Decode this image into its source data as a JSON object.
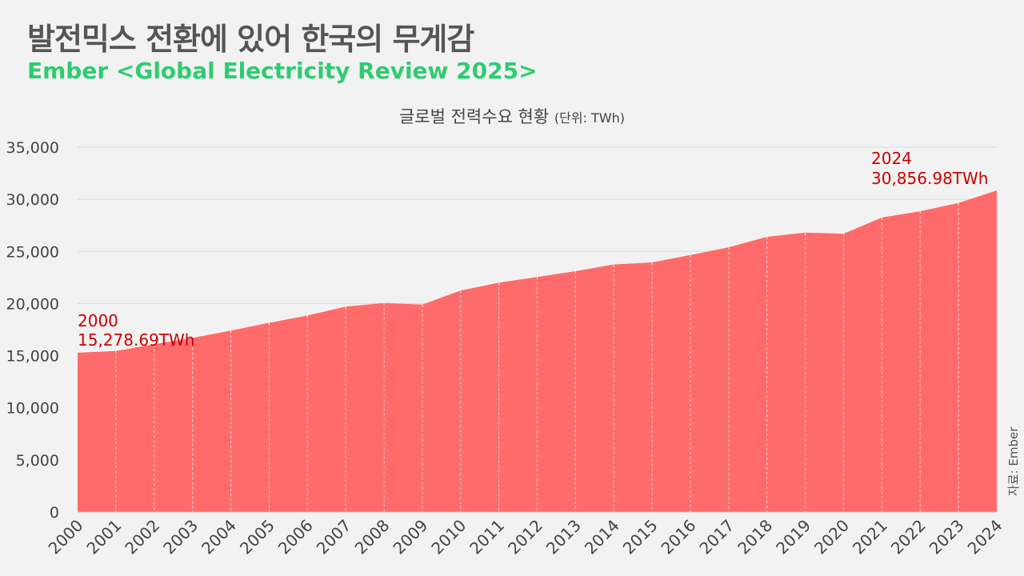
{
  "header": {
    "title": "발전믹스 전환에 있어 한국의 무게감",
    "subtitle": "Ember <Global Electricity Review 2025>"
  },
  "source": "자료: Ember",
  "colors": {
    "area": "#ff6b6b",
    "annotation": "#cc0000",
    "subtitle": "#2ecc71",
    "grid": "#d9d9d9"
  },
  "chart_data": {
    "type": "area",
    "title": "글로벌 전력수요 현황",
    "unit_label": "(단위: TWh)",
    "x": [
      "2000",
      "2001",
      "2002",
      "2003",
      "2004",
      "2005",
      "2006",
      "2007",
      "2008",
      "2009",
      "2010",
      "2011",
      "2012",
      "2013",
      "2014",
      "2015",
      "2016",
      "2017",
      "2018",
      "2019",
      "2020",
      "2021",
      "2022",
      "2023",
      "2024"
    ],
    "values": [
      15278.69,
      15450,
      16100,
      16700,
      17400,
      18150,
      18850,
      19700,
      20050,
      19900,
      21250,
      22000,
      22550,
      23100,
      23750,
      23950,
      24650,
      25400,
      26400,
      26800,
      26700,
      28250,
      28850,
      29650,
      30856.98
    ],
    "ylim": [
      0,
      35000
    ],
    "yticks": [
      "0",
      "5,000",
      "10,000",
      "15,000",
      "20,000",
      "25,000",
      "30,000",
      "35,000"
    ],
    "grid": true,
    "annotations": [
      {
        "year": "2000",
        "value": "15,278.69TWh"
      },
      {
        "year": "2024",
        "value": "30,856.98TWh"
      }
    ]
  }
}
